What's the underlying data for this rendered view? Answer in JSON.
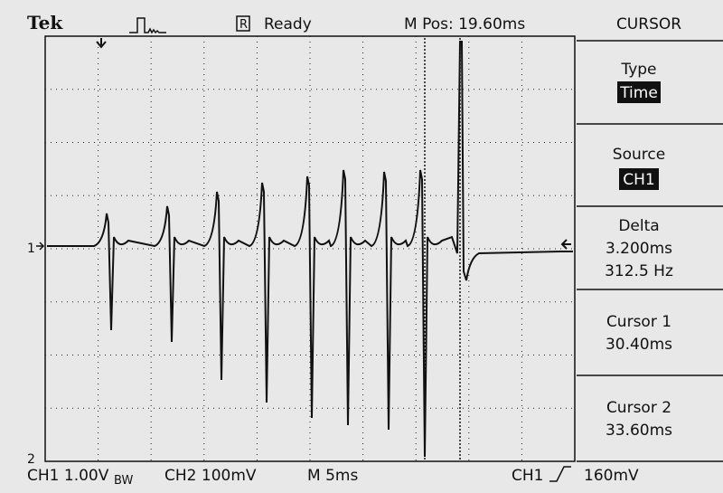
{
  "header": {
    "brand": "Tek",
    "ref_marker": "R",
    "status": "Ready",
    "position": "M Pos: 19.60ms"
  },
  "menu": {
    "title": "CURSOR",
    "items": [
      {
        "label": "Type",
        "value": "Time"
      },
      {
        "label": "Source",
        "value": "CH1"
      },
      {
        "label": "Delta",
        "values": [
          "3.200ms",
          "312.5 Hz"
        ]
      },
      {
        "label": "Cursor 1",
        "value": "30.40ms"
      },
      {
        "label": "Cursor 2",
        "value": "33.60ms"
      }
    ]
  },
  "markers": {
    "ch1": "1",
    "ch2": "2"
  },
  "status_bar": {
    "ch1": "CH1 1.00V",
    "ch1_bw": "BW",
    "ch2": "CH2 100mV",
    "timebase": "M 5ms",
    "trigger_source": "CH1",
    "trigger_level": "160mV"
  }
}
